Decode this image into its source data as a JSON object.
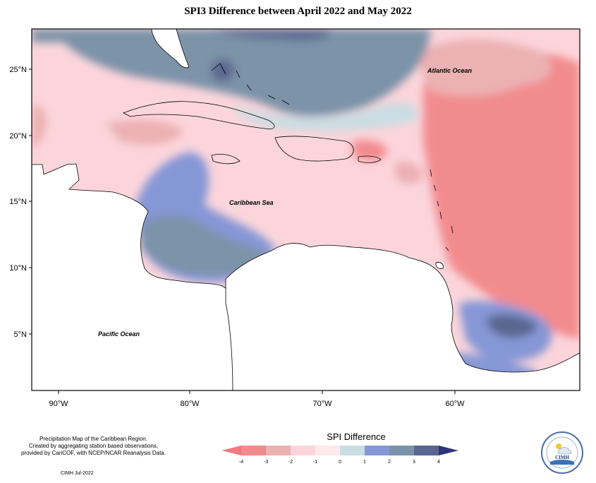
{
  "title": "SPI3 Difference between April 2022 and May 2022",
  "ocean_labels": {
    "atlantic": "Atlantic Ocean",
    "caribbean": "Caribbean Sea",
    "pacific": "Pacific Ocean"
  },
  "axes": {
    "latitude_ticks": [
      "25°N",
      "20°N",
      "15°N",
      "10°N",
      "5°N"
    ],
    "longitude_ticks": [
      "90°W",
      "80°W",
      "70°W",
      "60°W"
    ]
  },
  "legend": {
    "title": "SPI Difference",
    "tick_labels": [
      "-4",
      "-3",
      "-2",
      "-1",
      "0",
      "1",
      "2",
      "3",
      "4"
    ],
    "class_colors": [
      "#f28b8e",
      "#ecb1b2",
      "#fbd5db",
      "#fde9ea",
      "#c9dde3",
      "#8697d6",
      "#7b93a8",
      "#5a668f"
    ],
    "arrow_low_color": "#f27a80",
    "arrow_high_color": "#2f357a"
  },
  "credits": {
    "line1": "Precipitation Map of the Caribbean Region.",
    "line2": "Created by aggregating station based observations,",
    "line3": "provided by CariCOF, with NCEP/NCAR Reanalysis Data.",
    "date": "CIMH Jul-2022"
  },
  "logo": {
    "text": "CIMH"
  }
}
